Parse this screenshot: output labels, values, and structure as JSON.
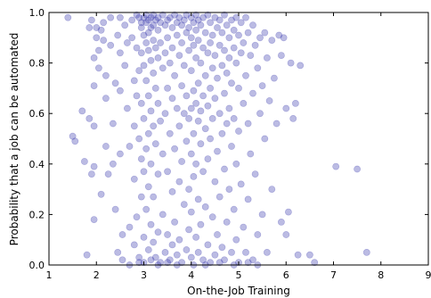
{
  "chart_data": {
    "type": "scatter",
    "title": "",
    "xlabel": "On-the-Job Training",
    "ylabel": "Probability that a job can be automated",
    "xlim": [
      1,
      9
    ],
    "ylim": [
      0.0,
      1.0
    ],
    "x_ticks": [
      "1",
      "2",
      "3",
      "4",
      "5",
      "6",
      "7",
      "8",
      "9"
    ],
    "y_ticks": [
      "0.0",
      "0.2",
      "0.4",
      "0.6",
      "0.8",
      "1.0"
    ],
    "marker_color": "#3b3bb0",
    "marker_opacity": 0.35,
    "grid": false,
    "legend": false,
    "points": [
      [
        1.4,
        0.98
      ],
      [
        1.5,
        0.51
      ],
      [
        1.55,
        0.49
      ],
      [
        1.7,
        0.61
      ],
      [
        1.75,
        0.41
      ],
      [
        1.8,
        0.04
      ],
      [
        1.85,
        0.58
      ],
      [
        1.9,
        0.36
      ],
      [
        1.85,
        0.94
      ],
      [
        1.9,
        0.97
      ],
      [
        1.95,
        0.82
      ],
      [
        1.95,
        0.71
      ],
      [
        1.95,
        0.55
      ],
      [
        1.95,
        0.39
      ],
      [
        1.95,
        0.18
      ],
      [
        2.0,
        0.94
      ],
      [
        2.0,
        0.9
      ],
      [
        2.05,
        0.85
      ],
      [
        2.05,
        0.78
      ],
      [
        2.1,
        0.28
      ],
      [
        2.1,
        0.93
      ],
      [
        2.15,
        0.96
      ],
      [
        2.15,
        0.89
      ],
      [
        2.2,
        0.75
      ],
      [
        2.2,
        0.66
      ],
      [
        2.2,
        0.47
      ],
      [
        2.25,
        0.36
      ],
      [
        2.3,
        0.98
      ],
      [
        2.3,
        0.87
      ],
      [
        2.35,
        0.56
      ],
      [
        2.35,
        0.4
      ],
      [
        2.4,
        0.72
      ],
      [
        2.4,
        0.22
      ],
      [
        2.45,
        0.05
      ],
      [
        2.45,
        0.91
      ],
      [
        2.5,
        0.98
      ],
      [
        2.5,
        0.84
      ],
      [
        2.5,
        0.69
      ],
      [
        2.5,
        0.44
      ],
      [
        2.55,
        0.12
      ],
      [
        2.55,
        0.02
      ],
      [
        2.6,
        0.95
      ],
      [
        2.6,
        0.79
      ],
      [
        2.65,
        0.88
      ],
      [
        2.65,
        0.62
      ],
      [
        2.7,
        0.47
      ],
      [
        2.7,
        0.15
      ],
      [
        2.75,
        0.97
      ],
      [
        2.75,
        0.9
      ],
      [
        2.8,
        0.73
      ],
      [
        2.8,
        0.55
      ],
      [
        2.8,
        0.34
      ],
      [
        2.8,
        0.08
      ],
      [
        2.85,
        0.99
      ],
      [
        2.85,
        0.86
      ],
      [
        2.85,
        0.67
      ],
      [
        2.85,
        0.19
      ],
      [
        2.9,
        0.98
      ],
      [
        2.9,
        0.77
      ],
      [
        2.9,
        0.5
      ],
      [
        2.9,
        0.03
      ],
      [
        2.95,
        0.96
      ],
      [
        2.95,
        0.94
      ],
      [
        2.95,
        0.84
      ],
      [
        2.95,
        0.64
      ],
      [
        2.95,
        0.42
      ],
      [
        2.95,
        0.27
      ],
      [
        3.0,
        0.98
      ],
      [
        3.0,
        0.91
      ],
      [
        3.0,
        0.79
      ],
      [
        3.0,
        0.58
      ],
      [
        3.0,
        0.37
      ],
      [
        3.0,
        0.11
      ],
      [
        3.0,
        0.01
      ],
      [
        3.05,
        0.99
      ],
      [
        3.05,
        0.96
      ],
      [
        3.05,
        0.88
      ],
      [
        3.05,
        0.73
      ],
      [
        3.05,
        0.46
      ],
      [
        3.05,
        0.22
      ],
      [
        3.1,
        0.97
      ],
      [
        3.1,
        0.92
      ],
      [
        3.1,
        0.85
      ],
      [
        3.1,
        0.67
      ],
      [
        3.1,
        0.52
      ],
      [
        3.1,
        0.31
      ],
      [
        3.1,
        0.06
      ],
      [
        3.15,
        0.98
      ],
      [
        3.15,
        0.94
      ],
      [
        3.15,
        0.81
      ],
      [
        3.15,
        0.61
      ],
      [
        3.15,
        0.4
      ],
      [
        3.15,
        0.16
      ],
      [
        3.15,
        0.02
      ],
      [
        3.2,
        0.99
      ],
      [
        3.2,
        0.95
      ],
      [
        3.2,
        0.89
      ],
      [
        3.2,
        0.76
      ],
      [
        3.2,
        0.55
      ],
      [
        3.2,
        0.27
      ],
      [
        3.2,
        0.09
      ],
      [
        3.25,
        0.97
      ],
      [
        3.25,
        0.86
      ],
      [
        3.25,
        0.7
      ],
      [
        3.25,
        0.48
      ],
      [
        3.25,
        0.03
      ],
      [
        3.3,
        0.98
      ],
      [
        3.3,
        0.93
      ],
      [
        3.3,
        0.82
      ],
      [
        3.3,
        0.64
      ],
      [
        3.3,
        0.36
      ],
      [
        3.3,
        0.13
      ],
      [
        3.35,
        0.96
      ],
      [
        3.35,
        0.88
      ],
      [
        3.35,
        0.57
      ],
      [
        3.35,
        0.01
      ],
      [
        3.4,
        0.99
      ],
      [
        3.4,
        0.78
      ],
      [
        3.4,
        0.44
      ],
      [
        3.4,
        0.2
      ],
      [
        3.45,
        0.95
      ],
      [
        3.45,
        0.84
      ],
      [
        3.45,
        0.6
      ],
      [
        3.45,
        0.05
      ],
      [
        3.5,
        0.97
      ],
      [
        3.5,
        0.9
      ],
      [
        3.5,
        0.7
      ],
      [
        3.5,
        0.37
      ],
      [
        3.5,
        0.12
      ],
      [
        3.55,
        0.98
      ],
      [
        3.55,
        0.8
      ],
      [
        3.55,
        0.52
      ],
      [
        3.55,
        0.02
      ],
      [
        3.6,
        0.94
      ],
      [
        3.6,
        0.86
      ],
      [
        3.6,
        0.66
      ],
      [
        3.6,
        0.29
      ],
      [
        3.6,
        0.08
      ],
      [
        3.65,
        0.99
      ],
      [
        3.65,
        0.75
      ],
      [
        3.65,
        0.46
      ],
      [
        3.65,
        0.17
      ],
      [
        3.7,
        0.96
      ],
      [
        3.7,
        0.91
      ],
      [
        3.7,
        0.62
      ],
      [
        3.7,
        0.04
      ],
      [
        3.75,
        0.98
      ],
      [
        3.75,
        0.83
      ],
      [
        3.75,
        0.55
      ],
      [
        3.75,
        0.33
      ],
      [
        3.75,
        0.1
      ],
      [
        3.8,
        0.95
      ],
      [
        3.8,
        0.88
      ],
      [
        3.8,
        0.71
      ],
      [
        3.8,
        0.41
      ],
      [
        3.8,
        0.01
      ],
      [
        3.85,
        0.97
      ],
      [
        3.85,
        0.79
      ],
      [
        3.85,
        0.6
      ],
      [
        3.85,
        0.24
      ],
      [
        3.9,
        0.99
      ],
      [
        3.9,
        0.92
      ],
      [
        3.9,
        0.67
      ],
      [
        3.9,
        0.49
      ],
      [
        3.9,
        0.06
      ],
      [
        3.95,
        0.94
      ],
      [
        3.95,
        0.85
      ],
      [
        3.95,
        0.58
      ],
      [
        3.95,
        0.3
      ],
      [
        3.95,
        0.14
      ],
      [
        4.0,
        0.98
      ],
      [
        4.0,
        0.9
      ],
      [
        4.0,
        0.77
      ],
      [
        4.0,
        0.62
      ],
      [
        4.0,
        0.44
      ],
      [
        4.0,
        0.21
      ],
      [
        4.0,
        0.03
      ],
      [
        4.05,
        0.96
      ],
      [
        4.05,
        0.87
      ],
      [
        4.05,
        0.69
      ],
      [
        4.05,
        0.52
      ],
      [
        4.05,
        0.35
      ],
      [
        4.05,
        0.0
      ],
      [
        4.1,
        0.99
      ],
      [
        4.1,
        0.93
      ],
      [
        4.1,
        0.82
      ],
      [
        4.1,
        0.64
      ],
      [
        4.1,
        0.4
      ],
      [
        4.1,
        0.11
      ],
      [
        4.15,
        0.97
      ],
      [
        4.15,
        0.89
      ],
      [
        4.15,
        0.72
      ],
      [
        4.15,
        0.57
      ],
      [
        4.15,
        0.26
      ],
      [
        4.15,
        0.05
      ],
      [
        4.2,
        0.95
      ],
      [
        4.2,
        0.8
      ],
      [
        4.2,
        0.61
      ],
      [
        4.2,
        0.48
      ],
      [
        4.2,
        0.16
      ],
      [
        4.25,
        0.98
      ],
      [
        4.25,
        0.86
      ],
      [
        4.25,
        0.67
      ],
      [
        4.25,
        0.37
      ],
      [
        4.25,
        0.02
      ],
      [
        4.3,
        0.92
      ],
      [
        4.3,
        0.75
      ],
      [
        4.3,
        0.54
      ],
      [
        4.3,
        0.23
      ],
      [
        4.35,
        0.99
      ],
      [
        4.35,
        0.84
      ],
      [
        4.35,
        0.63
      ],
      [
        4.35,
        0.42
      ],
      [
        4.35,
        0.08
      ],
      [
        4.4,
        0.96
      ],
      [
        4.4,
        0.88
      ],
      [
        4.4,
        0.7
      ],
      [
        4.4,
        0.5
      ],
      [
        4.4,
        0.01
      ],
      [
        4.45,
        0.91
      ],
      [
        4.45,
        0.78
      ],
      [
        4.45,
        0.58
      ],
      [
        4.45,
        0.19
      ],
      [
        4.5,
        0.98
      ],
      [
        4.5,
        0.83
      ],
      [
        4.5,
        0.66
      ],
      [
        4.5,
        0.33
      ],
      [
        4.5,
        0.04
      ],
      [
        4.55,
        0.94
      ],
      [
        4.55,
        0.74
      ],
      [
        4.55,
        0.45
      ],
      [
        4.55,
        0.12
      ],
      [
        4.6,
        0.97
      ],
      [
        4.6,
        0.87
      ],
      [
        4.6,
        0.6
      ],
      [
        4.6,
        0.27
      ],
      [
        4.65,
        0.92
      ],
      [
        4.65,
        0.79
      ],
      [
        4.65,
        0.52
      ],
      [
        4.65,
        0.07
      ],
      [
        4.7,
        0.99
      ],
      [
        4.7,
        0.85
      ],
      [
        4.7,
        0.68
      ],
      [
        4.7,
        0.38
      ],
      [
        4.7,
        0.02
      ],
      [
        4.75,
        0.95
      ],
      [
        4.75,
        0.76
      ],
      [
        4.75,
        0.56
      ],
      [
        4.75,
        0.17
      ],
      [
        4.8,
        0.9
      ],
      [
        4.8,
        0.82
      ],
      [
        4.8,
        0.62
      ],
      [
        4.8,
        0.3
      ],
      [
        4.85,
        0.97
      ],
      [
        4.85,
        0.72
      ],
      [
        4.85,
        0.47
      ],
      [
        4.85,
        0.05
      ],
      [
        4.9,
        0.93
      ],
      [
        4.9,
        0.86
      ],
      [
        4.9,
        0.58
      ],
      [
        4.9,
        0.22
      ],
      [
        4.95,
        0.98
      ],
      [
        4.95,
        0.8
      ],
      [
        4.95,
        0.4
      ],
      [
        4.95,
        0.1
      ],
      [
        5.0,
        0.91
      ],
      [
        5.0,
        0.7
      ],
      [
        5.0,
        0.53
      ],
      [
        5.0,
        0.01
      ],
      [
        5.05,
        0.96
      ],
      [
        5.05,
        0.84
      ],
      [
        5.05,
        0.32
      ],
      [
        5.1,
        0.88
      ],
      [
        5.1,
        0.64
      ],
      [
        5.1,
        0.15
      ],
      [
        5.15,
        0.98
      ],
      [
        5.15,
        0.75
      ],
      [
        5.15,
        0.05
      ],
      [
        5.2,
        0.92
      ],
      [
        5.2,
        0.56
      ],
      [
        5.2,
        0.26
      ],
      [
        5.25,
        0.83
      ],
      [
        5.25,
        0.44
      ],
      [
        5.3,
        0.95
      ],
      [
        5.3,
        0.68
      ],
      [
        5.3,
        0.02
      ],
      [
        5.35,
        0.87
      ],
      [
        5.35,
        0.36
      ],
      [
        5.4,
        0.78
      ],
      [
        5.4,
        0.12
      ],
      [
        5.45,
        0.9
      ],
      [
        5.45,
        0.6
      ],
      [
        5.5,
        0.71
      ],
      [
        5.5,
        0.2
      ],
      [
        5.55,
        0.92
      ],
      [
        5.55,
        0.5
      ],
      [
        5.6,
        0.82
      ],
      [
        5.6,
        0.05
      ],
      [
        5.65,
        0.65
      ],
      [
        5.7,
        0.89
      ],
      [
        5.7,
        0.3
      ],
      [
        5.75,
        0.74
      ],
      [
        5.8,
        0.56
      ],
      [
        5.85,
        0.91
      ],
      [
        5.9,
        0.83
      ],
      [
        5.9,
        0.17
      ],
      [
        5.95,
        0.9
      ],
      [
        6.0,
        0.62
      ],
      [
        6.0,
        0.12
      ],
      [
        6.05,
        0.21
      ],
      [
        6.1,
        0.8
      ],
      [
        6.15,
        0.58
      ],
      [
        6.2,
        0.64
      ],
      [
        6.25,
        0.04
      ],
      [
        6.3,
        0.79
      ],
      [
        6.5,
        0.04
      ],
      [
        6.6,
        0.01
      ],
      [
        7.05,
        0.39
      ],
      [
        7.5,
        0.38
      ],
      [
        7.7,
        0.05
      ],
      [
        5.2,
        0.01
      ],
      [
        5.4,
        0.0
      ],
      [
        4.9,
        0.0
      ],
      [
        4.6,
        0.01
      ],
      [
        4.3,
        0.0
      ],
      [
        3.7,
        0.0
      ],
      [
        3.5,
        0.01
      ],
      [
        3.3,
        0.0
      ],
      [
        2.9,
        0.01
      ],
      [
        2.7,
        0.0
      ]
    ]
  }
}
